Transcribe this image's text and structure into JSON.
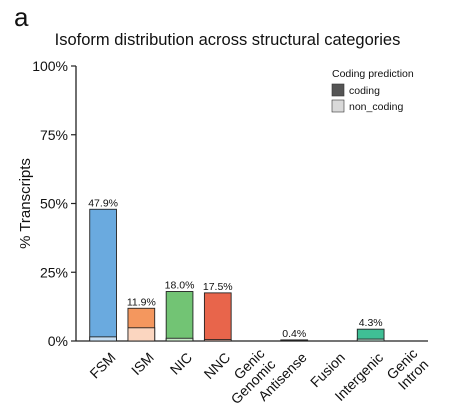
{
  "panel_label": "a",
  "chart_data": {
    "type": "bar",
    "title": "Isoform distribution across structural categories",
    "xlabel": "",
    "ylabel": "% Transcripts",
    "ylim": [
      0,
      100
    ],
    "yticks": [
      "0%",
      "25%",
      "50%",
      "75%",
      "100%"
    ],
    "ytick_values": [
      0,
      25,
      50,
      75,
      100
    ],
    "categories": [
      "FSM",
      "ISM",
      "NIC",
      "NNC",
      "Genic Genomic",
      "Antisense",
      "Fusion",
      "Intergenic",
      "Genic Intron"
    ],
    "category_lines": [
      [
        "FSM"
      ],
      [
        "ISM"
      ],
      [
        "NIC"
      ],
      [
        "NNC"
      ],
      [
        "Genic",
        "Genomic"
      ],
      [
        "Antisense"
      ],
      [
        "Fusion"
      ],
      [
        "Intergenic"
      ],
      [
        "Genic",
        "Intron"
      ]
    ],
    "values": [
      47.9,
      11.9,
      18.0,
      17.5,
      0,
      0.4,
      0,
      4.3,
      0
    ],
    "non_coding_values": [
      1.5,
      4.8,
      1.0,
      0.5,
      0,
      0.2,
      0,
      0.7,
      0
    ],
    "value_labels": [
      "47.9%",
      "11.9%",
      "18.0%",
      "17.5%",
      "",
      "0.4%",
      "",
      "4.3%",
      ""
    ],
    "category_colors": [
      "#6aaadf",
      "#f4975e",
      "#72c474",
      "#e8654b",
      "#b07cc6",
      "#9b9b9b",
      "#e6c86a",
      "#3fbf95",
      "#c9a06a"
    ],
    "non_coding_colors": [
      "#c8dff3",
      "#fbd6c0",
      "#c9eac9",
      "#f6c4b8",
      "#e5d6ee",
      "#dedede",
      "#f5ead0",
      "#c4ecdd",
      "#ecdcc6"
    ],
    "legend": {
      "title": "Coding prediction",
      "position": "top-right",
      "entries": [
        {
          "label": "coding",
          "color": "#555555"
        },
        {
          "label": "non_coding",
          "color": "#d9d9d9"
        }
      ]
    },
    "grid": false
  }
}
